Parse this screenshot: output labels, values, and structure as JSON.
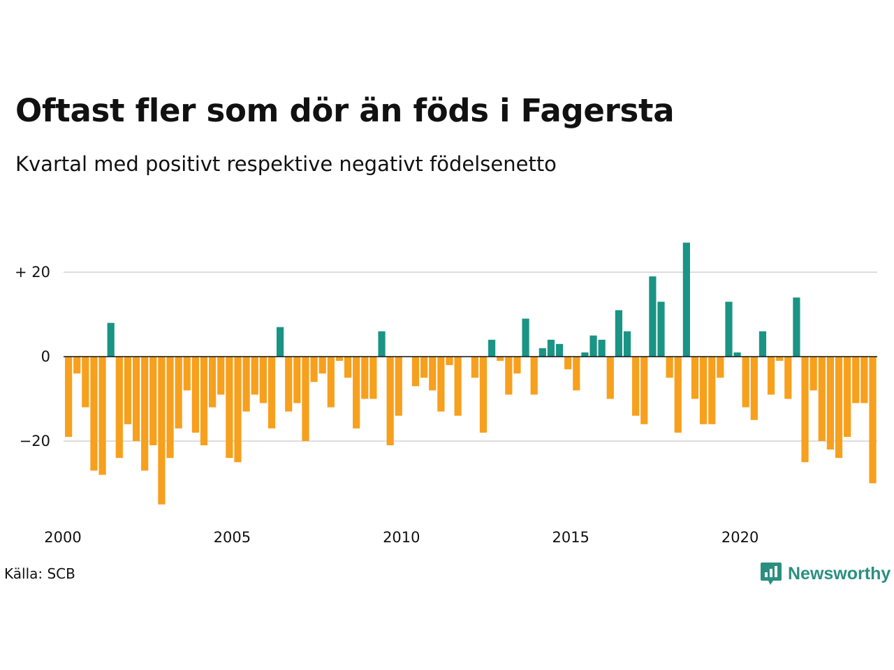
{
  "title": "Oftast fler som dör än föds i Fagersta",
  "subtitle": "Kvartal med positivt respektive negativt födelsenetto",
  "source": "Källa: SCB",
  "brand": "Newsworthy",
  "colors": {
    "positive": "#1a9484",
    "negative": "#f7a01d",
    "grid": "#dddddd",
    "baseline": "#111111"
  },
  "chart_data": {
    "type": "bar",
    "x_tick_labels": [
      "2000",
      "2005",
      "2010",
      "2015",
      "2020"
    ],
    "y_tick_labels": [
      "+ 20",
      "0",
      "−20"
    ],
    "y_ticks": [
      20,
      0,
      -20
    ],
    "ylim": [
      -37,
      30
    ],
    "x_start": "2000 Q1",
    "quarters_per_year": 4,
    "grid": true,
    "values": [
      -19,
      -4,
      -12,
      -27,
      -28,
      8,
      -24,
      -16,
      -20,
      -27,
      -21,
      -35,
      -24,
      -17,
      -8,
      -18,
      -21,
      -12,
      -9,
      -24,
      -25,
      -13,
      -9,
      -11,
      -17,
      7,
      -13,
      -11,
      -20,
      -6,
      -4,
      -12,
      -1,
      -5,
      -17,
      -10,
      -10,
      6,
      -21,
      -14,
      0,
      -7,
      -5,
      -8,
      -13,
      -2,
      -14,
      0,
      -5,
      -18,
      4,
      -1,
      -9,
      -4,
      9,
      -9,
      2,
      4,
      3,
      -3,
      -8,
      1,
      5,
      4,
      -10,
      11,
      6,
      -14,
      -16,
      19,
      13,
      -5,
      -18,
      27,
      -10,
      -16,
      -16,
      -5,
      13,
      1,
      -12,
      -15,
      6,
      -9,
      -1,
      -10,
      14,
      -25,
      -8,
      -20,
      -22,
      -24,
      -19,
      -11,
      -11,
      -30
    ]
  }
}
